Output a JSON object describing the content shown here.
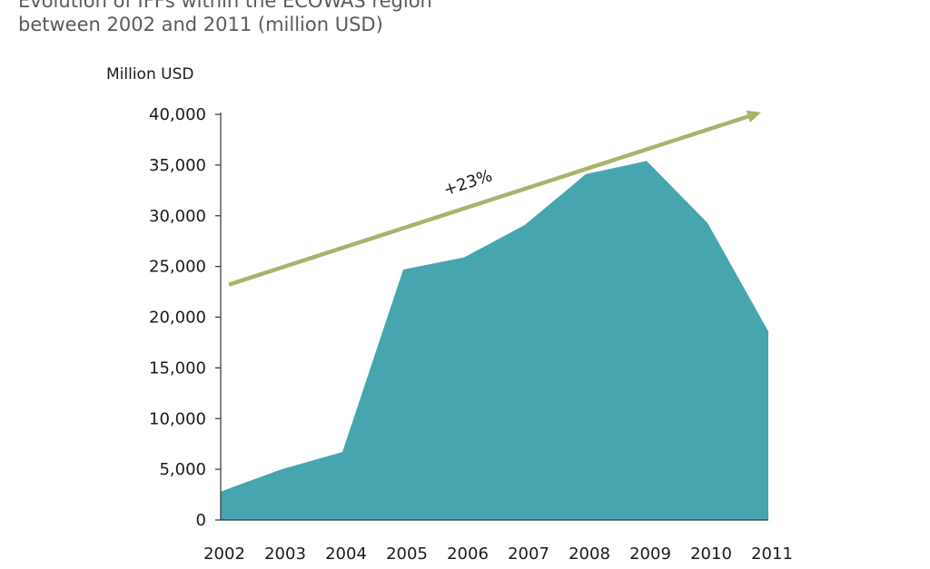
{
  "chart_data": {
    "type": "area",
    "title": "Evolution of IFFs within the ECOWAS region",
    "subtitle": "between 2002 and 2011 (million USD)",
    "ylabel": "Million USD",
    "xlabel": "",
    "categories": [
      "2002",
      "2003",
      "2004",
      "2005",
      "2006",
      "2007",
      "2008",
      "2009",
      "2010",
      "2011"
    ],
    "values": [
      2800,
      5000,
      6700,
      24700,
      25900,
      29100,
      34100,
      35400,
      29300,
      18600
    ],
    "ylim": [
      0,
      40000
    ],
    "yticks": [
      0,
      5000,
      10000,
      15000,
      20000,
      25000,
      30000,
      35000,
      40000
    ],
    "ytick_labels": [
      "0",
      "5,000",
      "10,000",
      "15,000",
      "20,000",
      "25,000",
      "30,000",
      "35,000",
      "40,000"
    ],
    "grid": false,
    "legend": "none",
    "annotation": {
      "text": "+23%",
      "arrow_start_value": 25000,
      "arrow_end_value": 40200
    },
    "colors": {
      "area": "#47a5af",
      "arrow": "#a5b56b",
      "axis": "#333333"
    }
  }
}
